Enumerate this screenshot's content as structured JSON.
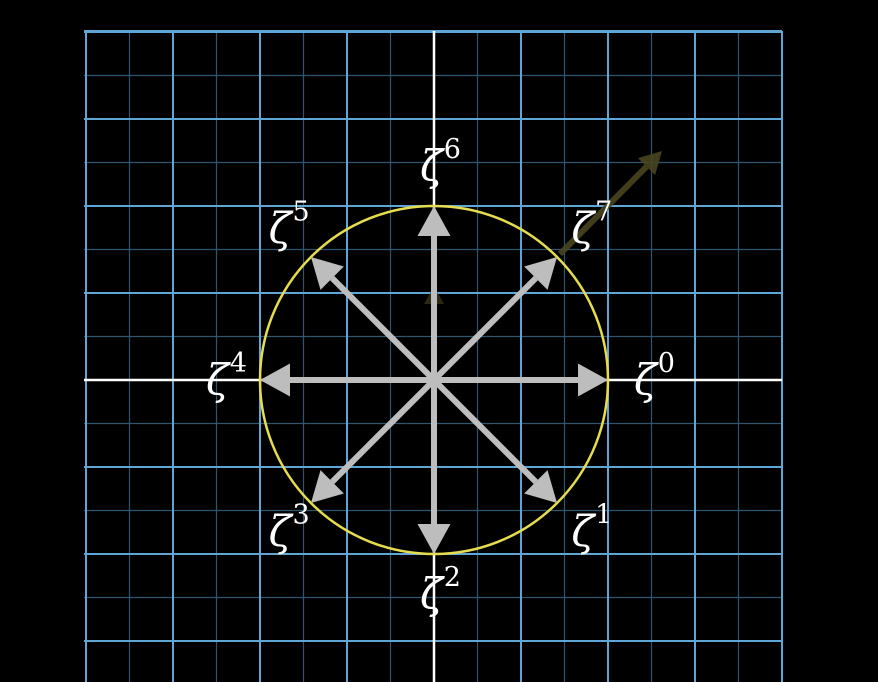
{
  "colors": {
    "background": "#000000",
    "grid_major": "#5fa6d6",
    "grid_minor": "#2e5670",
    "axes": "#ffffff",
    "unit_circle": "#e6dc4e",
    "arrows": "#bdbdbd",
    "faint_arrow": "#4a4520"
  },
  "diagram": {
    "roots_of_unity_order": 8,
    "symbol": "ζ",
    "labels": [
      {
        "exponent": "0",
        "angle_deg": 0
      },
      {
        "exponent": "1",
        "angle_deg": -45
      },
      {
        "exponent": "2",
        "angle_deg": -90
      },
      {
        "exponent": "3",
        "angle_deg": -135
      },
      {
        "exponent": "4",
        "angle_deg": 180
      },
      {
        "exponent": "5",
        "angle_deg": 135
      },
      {
        "exponent": "6",
        "angle_deg": 90
      },
      {
        "exponent": "7",
        "angle_deg": 45
      }
    ]
  }
}
